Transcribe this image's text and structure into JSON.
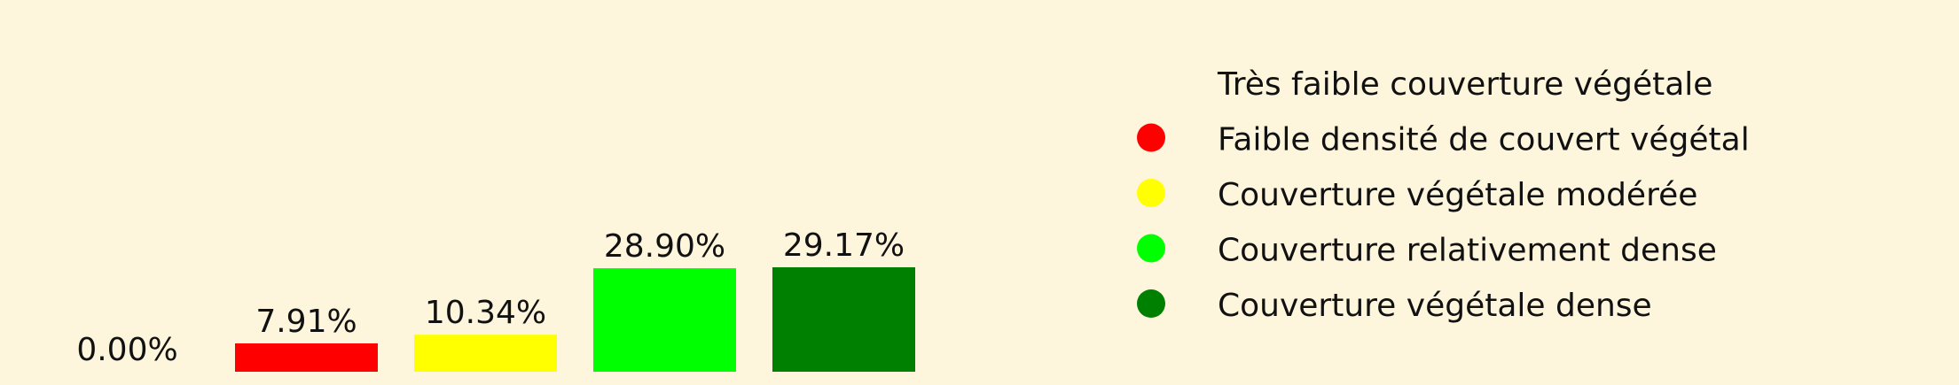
{
  "chart_data": {
    "type": "bar",
    "categories": [
      "Très faible couverture végétale",
      "Faible densité de couvert végétal",
      "Couverture végétale modérée",
      "Couverture relativement dense",
      "Couverture végétale dense"
    ],
    "values": [
      0.0,
      7.91,
      10.34,
      28.9,
      29.17
    ],
    "data_labels": [
      "0.00%",
      "7.91%",
      "10.34%",
      "28.90%",
      "29.17%"
    ],
    "colors": [
      "#fdf5dc",
      "#ff0000",
      "#ffff00",
      "#00ff00",
      "#008000"
    ],
    "legend_position": "right",
    "grid": false,
    "ylim": [
      0,
      29.17
    ],
    "background": "#fdf5dc"
  }
}
